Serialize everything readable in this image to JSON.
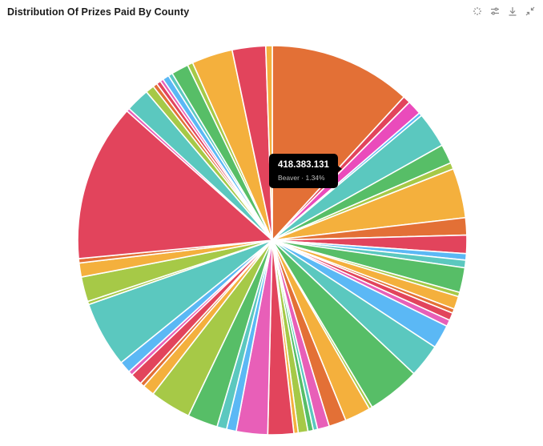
{
  "header": {
    "title": "Distribution Of Prizes Paid By County",
    "tools": [
      {
        "name": "refresh-icon",
        "glyph": "sparkle"
      },
      {
        "name": "filter-settings-icon",
        "glyph": "sliders"
      },
      {
        "name": "download-icon",
        "glyph": "download"
      },
      {
        "name": "collapse-icon",
        "glyph": "minimize"
      }
    ]
  },
  "tooltip": {
    "value": "418.383.131",
    "label": "Beaver · 1.34%"
  },
  "chart_data": {
    "type": "pie",
    "title": "Distribution Of Prizes Paid By County",
    "center": [
      340,
      300
    ],
    "radius": 243,
    "start_angle_deg": 0,
    "direction": "clockwise",
    "legend": "none",
    "highlighted": {
      "label": "Beaver",
      "value": 418383131,
      "percent": 1.34
    },
    "colors": {
      "orange": "#e37036",
      "red": "#e2445c",
      "pink": "#e85fb8",
      "magenta": "#ea4bbb",
      "teal": "#5bc8bf",
      "green": "#57be67",
      "lime": "#a6c947",
      "yellow": "#f4b03d",
      "blue": "#5bb8f5"
    },
    "slices": [
      {
        "color": "orange",
        "percent": 13.2
      },
      {
        "color": "red",
        "percent": 0.7
      },
      {
        "color": "magenta",
        "percent": 1.34,
        "label": "Beaver"
      },
      {
        "color": "blue",
        "percent": 0.3
      },
      {
        "color": "teal",
        "percent": 3.3
      },
      {
        "color": "green",
        "percent": 1.8
      },
      {
        "color": "lime",
        "percent": 0.6
      },
      {
        "color": "yellow",
        "percent": 4.6
      },
      {
        "color": "orange",
        "percent": 1.6
      },
      {
        "color": "red",
        "percent": 1.7
      },
      {
        "color": "blue",
        "percent": 0.6
      },
      {
        "color": "teal",
        "percent": 0.7
      },
      {
        "color": "green",
        "percent": 2.3
      },
      {
        "color": "lime",
        "percent": 0.4
      },
      {
        "color": "yellow",
        "percent": 1.2
      },
      {
        "color": "orange",
        "percent": 0.4
      },
      {
        "color": "red",
        "percent": 0.7
      },
      {
        "color": "pink",
        "percent": 0.6
      },
      {
        "color": "blue",
        "percent": 2.2
      },
      {
        "color": "teal",
        "percent": 3.1
      },
      {
        "color": "green",
        "percent": 4.9
      },
      {
        "color": "lime",
        "percent": 0.3
      },
      {
        "color": "yellow",
        "percent": 2.4
      },
      {
        "color": "orange",
        "percent": 1.6
      },
      {
        "color": "pink",
        "percent": 1.1
      },
      {
        "color": "teal",
        "percent": 0.4
      },
      {
        "color": "green",
        "percent": 0.5
      },
      {
        "color": "lime",
        "percent": 0.9
      },
      {
        "color": "yellow",
        "percent": 0.4
      },
      {
        "color": "red",
        "percent": 2.4
      },
      {
        "color": "pink",
        "percent": 2.9
      },
      {
        "color": "blue",
        "percent": 0.9
      },
      {
        "color": "teal",
        "percent": 0.9
      },
      {
        "color": "green",
        "percent": 2.8
      },
      {
        "color": "lime",
        "percent": 3.8
      },
      {
        "color": "yellow",
        "percent": 1.1
      },
      {
        "color": "orange",
        "percent": 0.4
      },
      {
        "color": "red",
        "percent": 1.1
      },
      {
        "color": "pink",
        "percent": 0.4
      },
      {
        "color": "blue",
        "percent": 1.1
      },
      {
        "color": "teal",
        "percent": 6.1
      },
      {
        "color": "lime",
        "percent": 0.3
      },
      {
        "color": "lime",
        "percent": 2.3
      },
      {
        "color": "yellow",
        "percent": 1.3
      },
      {
        "color": "orange",
        "percent": 0.4
      },
      {
        "color": "red",
        "percent": 14.6
      },
      {
        "color": "pink",
        "percent": 0.3
      },
      {
        "color": "teal",
        "percent": 2.2
      },
      {
        "color": "lime",
        "percent": 0.8
      },
      {
        "color": "orange",
        "percent": 0.4
      },
      {
        "color": "red",
        "percent": 0.4
      },
      {
        "color": "pink",
        "percent": 0.3
      },
      {
        "color": "blue",
        "percent": 0.6
      },
      {
        "color": "teal",
        "percent": 0.4
      },
      {
        "color": "green",
        "percent": 1.6
      },
      {
        "color": "lime",
        "percent": 0.5
      },
      {
        "color": "yellow",
        "percent": 3.8
      },
      {
        "color": "red",
        "percent": 3.1
      },
      {
        "color": "yellow",
        "percent": 0.6
      }
    ]
  }
}
